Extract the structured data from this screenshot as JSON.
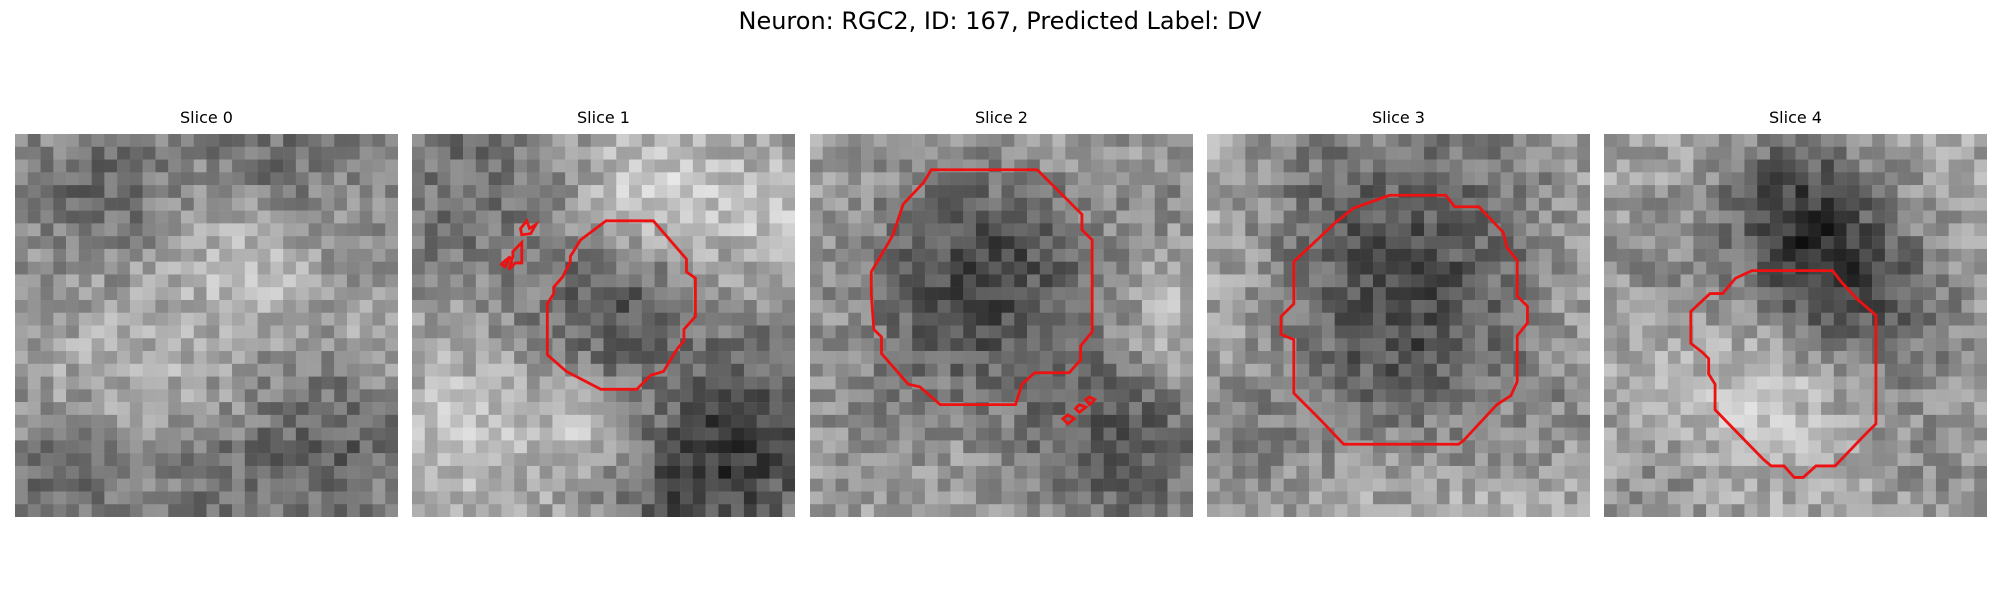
{
  "figure": {
    "title": "Neuron: RGC2, ID: 167, Predicted Label: DV"
  },
  "panels": [
    {
      "title": "Slice 0",
      "contour": "none"
    },
    {
      "title": "Slice 1",
      "contour": "partial"
    },
    {
      "title": "Slice 2",
      "contour": "full"
    },
    {
      "title": "Slice 3",
      "contour": "full"
    },
    {
      "title": "Slice 4",
      "contour": "partial"
    }
  ],
  "colors": {
    "contour": "#ee1111",
    "background": "#ffffff"
  }
}
